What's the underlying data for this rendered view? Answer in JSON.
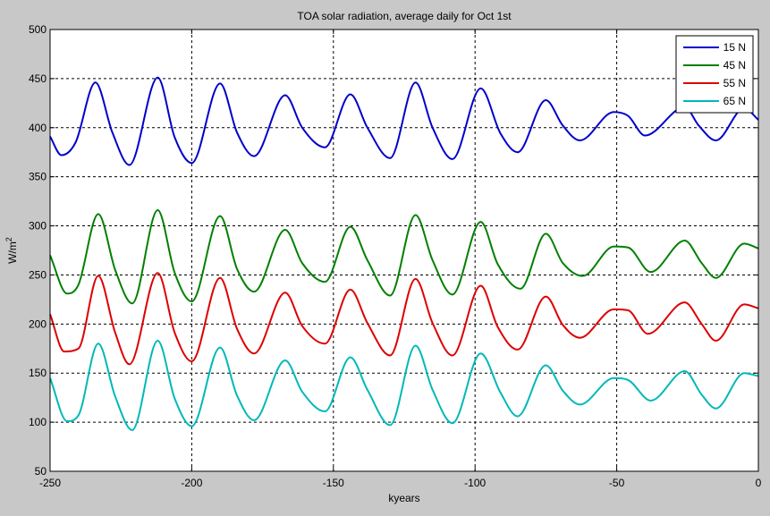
{
  "chart_data": {
    "type": "line",
    "title": "TOA solar radiation, average daily for Oct 1st",
    "xlabel": "kyears",
    "ylabel_base": "W/m",
    "ylabel_sup": "2",
    "xlim": [
      -250,
      0
    ],
    "ylim": [
      50,
      500
    ],
    "xticks": [
      -250,
      -200,
      -150,
      -100,
      -50,
      0
    ],
    "yticks": [
      50,
      100,
      150,
      200,
      250,
      300,
      350,
      400,
      450,
      500
    ],
    "grid": true,
    "legend_position": "top-right",
    "series": [
      {
        "name": "15 N",
        "color": "#0000cc",
        "points": [
          [
            -250,
            391
          ],
          [
            -246,
            372
          ],
          [
            -241,
            385
          ],
          [
            -234,
            446
          ],
          [
            -228,
            395
          ],
          [
            -222,
            362
          ],
          [
            -212,
            451
          ],
          [
            -206,
            390
          ],
          [
            -200,
            364
          ],
          [
            -190,
            445
          ],
          [
            -184,
            395
          ],
          [
            -178,
            371
          ],
          [
            -167,
            433
          ],
          [
            -161,
            400
          ],
          [
            -153,
            380
          ],
          [
            -144,
            434
          ],
          [
            -138,
            400
          ],
          [
            -130,
            369
          ],
          [
            -121,
            446
          ],
          [
            -115,
            400
          ],
          [
            -108,
            368
          ],
          [
            -98,
            440
          ],
          [
            -91,
            394
          ],
          [
            -85,
            375
          ],
          [
            -75,
            428
          ],
          [
            -69,
            402
          ],
          [
            -63,
            387
          ],
          [
            -51,
            416
          ],
          [
            -46,
            412
          ],
          [
            -40,
            392
          ],
          [
            -26,
            421
          ],
          [
            -21,
            402
          ],
          [
            -15,
            387
          ],
          [
            -5,
            420
          ],
          [
            0,
            408
          ]
        ]
      },
      {
        "name": "45 N",
        "color": "#008000",
        "points": [
          [
            -250,
            270
          ],
          [
            -244,
            231
          ],
          [
            -240,
            240
          ],
          [
            -233,
            312
          ],
          [
            -227,
            255
          ],
          [
            -221,
            221
          ],
          [
            -212,
            316
          ],
          [
            -206,
            252
          ],
          [
            -200,
            223
          ],
          [
            -190,
            310
          ],
          [
            -184,
            256
          ],
          [
            -178,
            233
          ],
          [
            -167,
            296
          ],
          [
            -161,
            262
          ],
          [
            -153,
            243
          ],
          [
            -144,
            299
          ],
          [
            -138,
            265
          ],
          [
            -130,
            229
          ],
          [
            -121,
            311
          ],
          [
            -115,
            265
          ],
          [
            -108,
            230
          ],
          [
            -98,
            304
          ],
          [
            -92,
            261
          ],
          [
            -84,
            236
          ],
          [
            -75,
            292
          ],
          [
            -69,
            262
          ],
          [
            -62,
            249
          ],
          [
            -51,
            279
          ],
          [
            -46,
            278
          ],
          [
            -38,
            253
          ],
          [
            -26,
            285
          ],
          [
            -20,
            262
          ],
          [
            -15,
            247
          ],
          [
            -5,
            282
          ],
          [
            0,
            277
          ]
        ]
      },
      {
        "name": "55 N",
        "color": "#dd0000",
        "points": [
          [
            -250,
            210
          ],
          [
            -245,
            172
          ],
          [
            -240,
            175
          ],
          [
            -233,
            249
          ],
          [
            -227,
            191
          ],
          [
            -222,
            159
          ],
          [
            -212,
            252
          ],
          [
            -206,
            191
          ],
          [
            -200,
            162
          ],
          [
            -190,
            247
          ],
          [
            -184,
            195
          ],
          [
            -178,
            170
          ],
          [
            -167,
            232
          ],
          [
            -161,
            198
          ],
          [
            -153,
            180
          ],
          [
            -144,
            235
          ],
          [
            -138,
            201
          ],
          [
            -130,
            168
          ],
          [
            -121,
            246
          ],
          [
            -115,
            201
          ],
          [
            -108,
            168
          ],
          [
            -98,
            239
          ],
          [
            -92,
            197
          ],
          [
            -85,
            174
          ],
          [
            -75,
            228
          ],
          [
            -69,
            199
          ],
          [
            -63,
            186
          ],
          [
            -51,
            215
          ],
          [
            -46,
            214
          ],
          [
            -39,
            190
          ],
          [
            -26,
            222
          ],
          [
            -20,
            200
          ],
          [
            -15,
            183
          ],
          [
            -5,
            220
          ],
          [
            0,
            216
          ]
        ]
      },
      {
        "name": "65 N",
        "color": "#00b8b8",
        "points": [
          [
            -250,
            145
          ],
          [
            -244,
            101
          ],
          [
            -240,
            107
          ],
          [
            -233,
            180
          ],
          [
            -227,
            126
          ],
          [
            -221,
            92
          ],
          [
            -212,
            183
          ],
          [
            -206,
            124
          ],
          [
            -200,
            96
          ],
          [
            -190,
            176
          ],
          [
            -184,
            127
          ],
          [
            -178,
            102
          ],
          [
            -167,
            163
          ],
          [
            -161,
            131
          ],
          [
            -153,
            111
          ],
          [
            -144,
            166
          ],
          [
            -138,
            133
          ],
          [
            -130,
            97
          ],
          [
            -121,
            178
          ],
          [
            -115,
            133
          ],
          [
            -108,
            99
          ],
          [
            -98,
            170
          ],
          [
            -91,
            130
          ],
          [
            -85,
            106
          ],
          [
            -75,
            158
          ],
          [
            -69,
            132
          ],
          [
            -63,
            118
          ],
          [
            -51,
            145
          ],
          [
            -46,
            143
          ],
          [
            -38,
            122
          ],
          [
            -26,
            152
          ],
          [
            -20,
            128
          ],
          [
            -15,
            114
          ],
          [
            -5,
            150
          ],
          [
            0,
            147
          ]
        ]
      }
    ]
  }
}
